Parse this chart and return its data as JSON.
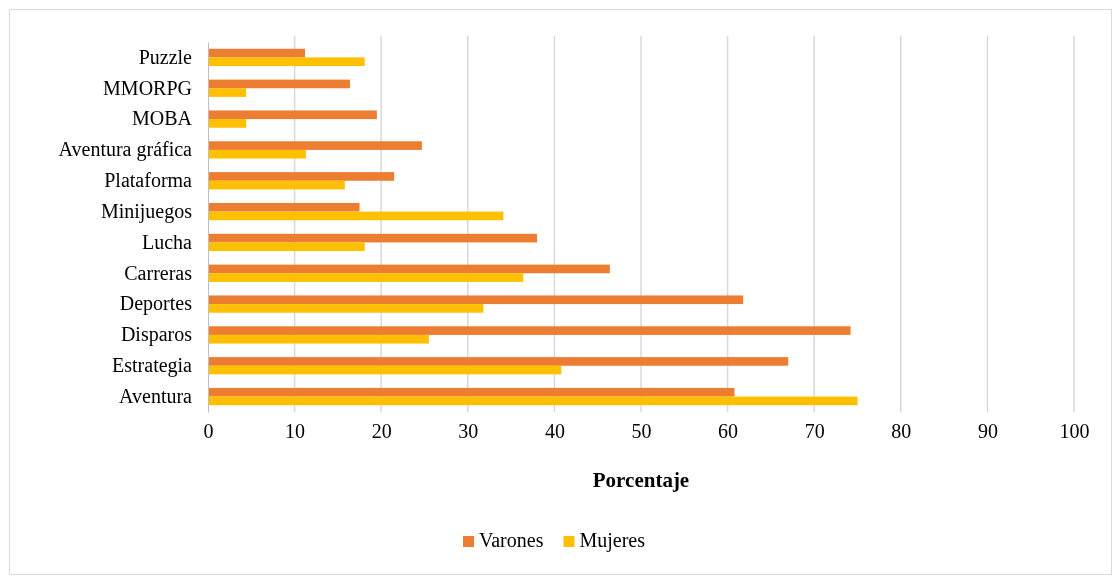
{
  "chart_data": {
    "type": "bar",
    "orientation": "horizontal",
    "xlabel": "Porcentaje",
    "categories": [
      "Puzzle",
      "MMORPG",
      "MOBA",
      "Aventura gráfica",
      "Plataforma",
      "Minijuegos",
      "Lucha",
      "Carreras",
      "Deportes",
      "Disparos",
      "Estrategia",
      "Aventura"
    ],
    "series": [
      {
        "name": "Varones",
        "color": "#ed7d31",
        "values": [
          11.2,
          16.4,
          19.5,
          24.7,
          21.5,
          17.5,
          38.0,
          46.4,
          61.8,
          74.2,
          67.0,
          60.8
        ]
      },
      {
        "name": "Mujeres",
        "color": "#ffc000",
        "values": [
          18.1,
          4.4,
          4.4,
          11.3,
          15.8,
          34.1,
          18.1,
          36.4,
          31.8,
          25.5,
          40.8,
          75.0
        ]
      }
    ],
    "xlim": [
      0,
      100
    ],
    "xticks": [
      0,
      10,
      20,
      30,
      40,
      50,
      60,
      70,
      80,
      90,
      100
    ],
    "grid": "x",
    "legend": "bottom"
  }
}
